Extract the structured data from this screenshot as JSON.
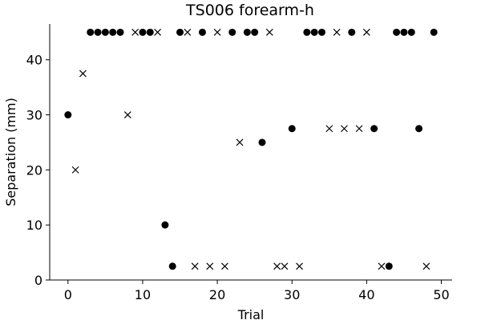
{
  "chart_data": {
    "type": "scatter",
    "title": "TS006 forearm-h",
    "xlabel": "Trial",
    "ylabel": "Separation (mm)",
    "xlim": [
      -2.45,
      51.45
    ],
    "ylim": [
      0,
      46.5
    ],
    "xticks": [
      0,
      10,
      20,
      30,
      40,
      50
    ],
    "yticks": [
      0,
      10,
      20,
      30,
      40
    ],
    "grid": false,
    "spines": "left-bottom",
    "series": [
      {
        "marker": "circle",
        "color": "#000000",
        "points": [
          [
            0,
            30
          ],
          [
            3,
            45
          ],
          [
            4,
            45
          ],
          [
            5,
            45
          ],
          [
            6,
            45
          ],
          [
            7,
            45
          ],
          [
            10,
            45
          ],
          [
            11,
            45
          ],
          [
            13,
            10
          ],
          [
            14,
            2.5
          ],
          [
            15,
            45
          ],
          [
            18,
            45
          ],
          [
            22,
            45
          ],
          [
            24,
            45
          ],
          [
            25,
            45
          ],
          [
            26,
            25
          ],
          [
            30,
            27.5
          ],
          [
            32,
            45
          ],
          [
            33,
            45
          ],
          [
            34,
            45
          ],
          [
            38,
            45
          ],
          [
            41,
            27.5
          ],
          [
            43,
            2.5
          ],
          [
            44,
            45
          ],
          [
            45,
            45
          ],
          [
            46,
            45
          ],
          [
            47,
            27.5
          ],
          [
            49,
            45
          ]
        ]
      },
      {
        "marker": "x",
        "color": "#000000",
        "points": [
          [
            1,
            20
          ],
          [
            2,
            37.5
          ],
          [
            8,
            30
          ],
          [
            9,
            45
          ],
          [
            12,
            45
          ],
          [
            16,
            45
          ],
          [
            17,
            2.5
          ],
          [
            19,
            2.5
          ],
          [
            20,
            45
          ],
          [
            21,
            2.5
          ],
          [
            23,
            25
          ],
          [
            27,
            45
          ],
          [
            28,
            2.5
          ],
          [
            29,
            2.5
          ],
          [
            31,
            2.5
          ],
          [
            35,
            27.5
          ],
          [
            36,
            45
          ],
          [
            37,
            27.5
          ],
          [
            39,
            27.5
          ],
          [
            40,
            45
          ],
          [
            42,
            2.5
          ],
          [
            48,
            2.5
          ]
        ]
      }
    ]
  }
}
